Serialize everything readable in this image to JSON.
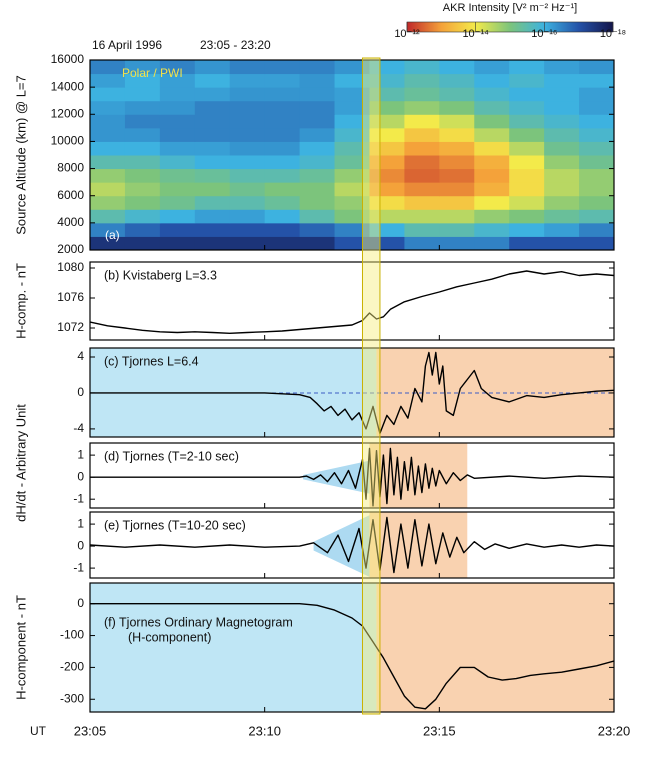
{
  "title": "16 April 1996",
  "subtitle": "23:05 - 23:20",
  "x_axis": {
    "label": "UT",
    "xlim": [
      5,
      20
    ],
    "xticks": [
      {
        "value": 5,
        "label": "23:05"
      },
      {
        "value": 10,
        "label": "23:10"
      },
      {
        "value": 15,
        "label": "23:15"
      },
      {
        "value": 20,
        "label": "23:20"
      }
    ]
  },
  "highlight": {
    "x": [
      12.8,
      13.3
    ],
    "color": "#f7ee7a"
  },
  "shared_ylabel": "dH/dt - Arbitrary Unit",
  "chart_data": [
    {
      "type": "heatmap",
      "ylabel": "Source Altitude (km) @ L=7",
      "annotations": [
        "(a)",
        "Polar / PWI"
      ],
      "ylim": [
        2000,
        16000
      ],
      "yticks": [
        2000,
        4000,
        6000,
        8000,
        10000,
        12000,
        14000,
        16000
      ],
      "colorbar_label": "AKR Intensity [V² m⁻² Hz⁻¹]",
      "colorbar_lim": [
        -12,
        -18
      ],
      "colorbar_ticks": [
        {
          "value": -12,
          "label": "10⁻¹²"
        },
        {
          "value": -14,
          "label": "10⁻¹⁴"
        },
        {
          "value": -16,
          "label": "10⁻¹⁶"
        },
        {
          "value": -18,
          "label": "10⁻¹⁸"
        }
      ],
      "colorscale": [
        [
          -12,
          "#c0282a"
        ],
        [
          -13,
          "#f4a23a"
        ],
        [
          -14,
          "#f3ea4a"
        ],
        [
          -15,
          "#7cc47c"
        ],
        [
          -16,
          "#3db2e0"
        ],
        [
          -17,
          "#2452a8"
        ],
        [
          -18,
          "#14154a"
        ]
      ],
      "xbins": [
        5,
        6,
        7,
        8,
        9,
        10,
        11,
        12,
        13,
        14,
        15,
        16,
        17,
        18,
        19,
        20
      ],
      "ybins": [
        2000,
        3000,
        4000,
        5000,
        6000,
        7000,
        8000,
        9000,
        10000,
        11000,
        12000,
        13000,
        14000,
        15000,
        16000
      ],
      "z": [
        [
          -17.5,
          -17.5,
          -17.5,
          -17.5,
          -17.5,
          -17.5,
          -17.5,
          -17,
          -17,
          -16.5,
          -16.5,
          -16.5,
          -17,
          -17,
          -17
        ],
        [
          -16.5,
          -16.8,
          -17,
          -17,
          -17,
          -17,
          -16.8,
          -16.5,
          -16,
          -15.5,
          -15.5,
          -15.8,
          -16,
          -16.2,
          -16.5
        ],
        [
          -15.5,
          -15.8,
          -16,
          -16.2,
          -16.2,
          -16,
          -15.5,
          -15,
          -14.5,
          -14.5,
          -14.5,
          -14.8,
          -15,
          -15.3,
          -15.5
        ],
        [
          -14.8,
          -15,
          -15.2,
          -15.5,
          -15.5,
          -15.3,
          -15,
          -14.8,
          -13.8,
          -13.5,
          -13.5,
          -14,
          -14.3,
          -14.8,
          -15
        ],
        [
          -14.5,
          -14.8,
          -15,
          -15,
          -15.2,
          -15,
          -15,
          -14.5,
          -13,
          -12.8,
          -12.8,
          -13.2,
          -13.8,
          -14.5,
          -14.8
        ],
        [
          -14.8,
          -15,
          -15.2,
          -15.3,
          -15.5,
          -15.5,
          -15.3,
          -14.8,
          -12.8,
          -12.5,
          -12.6,
          -13,
          -13.8,
          -14.5,
          -14.8
        ],
        [
          -15.5,
          -15.5,
          -15.8,
          -16,
          -16,
          -16,
          -15.8,
          -15.3,
          -13,
          -12.6,
          -12.8,
          -13.2,
          -14,
          -14.8,
          -15.2
        ],
        [
          -16,
          -16,
          -16.2,
          -16.2,
          -16.3,
          -16.3,
          -16,
          -15.5,
          -13.5,
          -13,
          -13.2,
          -13.8,
          -14.5,
          -15.2,
          -15.5
        ],
        [
          -16.3,
          -16.3,
          -16.5,
          -16.5,
          -16.5,
          -16.5,
          -16.3,
          -15.8,
          -14,
          -13.5,
          -13.8,
          -14.5,
          -15,
          -15.5,
          -15.8
        ],
        [
          -16.3,
          -16.5,
          -16.5,
          -16.5,
          -16.5,
          -16.5,
          -16.5,
          -16,
          -14.5,
          -14,
          -14.3,
          -15,
          -15.5,
          -15.8,
          -16
        ],
        [
          -16.2,
          -16.3,
          -16.3,
          -16.5,
          -16.5,
          -16.5,
          -16.5,
          -16.2,
          -15,
          -14.8,
          -15,
          -15.5,
          -15.8,
          -16,
          -16.2
        ],
        [
          -16,
          -16,
          -16.2,
          -16.2,
          -16.3,
          -16.3,
          -16.3,
          -16.2,
          -15.5,
          -15.3,
          -15.5,
          -15.8,
          -16,
          -16,
          -16.2
        ],
        [
          -16.2,
          -16,
          -16.2,
          -16,
          -16.2,
          -16.2,
          -16.3,
          -16,
          -15.8,
          -15.5,
          -15.7,
          -16,
          -15.8,
          -16,
          -16
        ],
        [
          -16.5,
          -16.3,
          -16.5,
          -16.3,
          -16.5,
          -16.5,
          -16.5,
          -16.3,
          -16,
          -15.8,
          -16,
          -16.2,
          -16,
          -16.2,
          -16.3
        ]
      ]
    },
    {
      "type": "line",
      "ylabel": "H-comp. - nT",
      "annotations": [
        "(b) Kvistaberg  L=3.3"
      ],
      "color": "#000000",
      "ylim": [
        1070.4,
        1080.8
      ],
      "yticks": [
        1072,
        1076,
        1080
      ],
      "x": [
        5,
        5.5,
        6,
        6.5,
        7,
        7.5,
        8,
        8.5,
        9,
        9.5,
        10,
        10.5,
        11,
        11.5,
        12,
        12.5,
        12.8,
        13,
        13.2,
        13.4,
        13.6,
        14,
        14.5,
        15,
        15.5,
        16,
        16.5,
        17,
        17.5,
        18,
        18.5,
        19,
        19.5,
        20
      ],
      "values": [
        1072.8,
        1072.3,
        1072,
        1071.7,
        1071.5,
        1071.4,
        1071.5,
        1071.4,
        1071.3,
        1071.4,
        1071.5,
        1071.6,
        1071.8,
        1072,
        1072.2,
        1072.4,
        1073,
        1074,
        1073.2,
        1073.5,
        1074.5,
        1075.5,
        1076.2,
        1076.8,
        1077.5,
        1078,
        1078.5,
        1079.2,
        1079.6,
        1079.2,
        1079.5,
        1079,
        1079.2,
        1079
      ]
    },
    {
      "type": "line",
      "annotations": [
        "(c) Tjornes  L=6.4"
      ],
      "color": "#000000",
      "zero_line": true,
      "bands": [
        {
          "x": [
            5,
            13.2
          ],
          "color": "#bfe6f5"
        },
        {
          "x": [
            13.2,
            20
          ],
          "color": "#f9d2b0"
        }
      ],
      "ylim": [
        -4.9,
        5
      ],
      "yticks": [
        4,
        0,
        -4
      ],
      "x": [
        5,
        6,
        7,
        8,
        9,
        10,
        10.5,
        11,
        11.3,
        11.5,
        11.7,
        11.9,
        12.1,
        12.3,
        12.5,
        12.7,
        12.9,
        13.1,
        13.3,
        13.5,
        13.7,
        13.9,
        14.1,
        14.3,
        14.5,
        14.6,
        14.7,
        14.8,
        14.9,
        15,
        15.1,
        15.2,
        15.4,
        15.6,
        15.8,
        16,
        16.2,
        16.5,
        17,
        17.5,
        18,
        18.5,
        19,
        19.5,
        20
      ],
      "values": [
        0,
        0,
        0,
        0,
        0,
        0,
        -0.1,
        -0.2,
        -0.5,
        -1.2,
        -2,
        -1.5,
        -2.5,
        -1.8,
        -3,
        -2.2,
        -4,
        -1.5,
        -4.5,
        -2.5,
        -3.5,
        -1.5,
        -2.8,
        0.5,
        -1,
        3,
        4.5,
        2,
        4.5,
        1,
        3,
        -2,
        -2.5,
        0.5,
        1.5,
        2.5,
        0.5,
        -0.5,
        -1,
        -0.3,
        -0.5,
        -0.2,
        0,
        0.2,
        0.3
      ]
    },
    {
      "type": "line",
      "annotations": [
        "(d) Tjornes  (T=2-10 sec)"
      ],
      "color": "#000000",
      "bands": [
        {
          "x": [
            13,
            15.8
          ],
          "color": "#f9d2b0"
        }
      ],
      "wedge": {
        "x": [
          11.1,
          13
        ],
        "half_height": [
          0.1,
          0.75
        ],
        "color": "#9fd3ee"
      },
      "ylim": [
        -1.4,
        1.55
      ],
      "yticks": [
        1,
        0,
        -1
      ],
      "x": [
        5,
        7,
        9,
        10,
        11,
        11.2,
        11.4,
        11.6,
        11.8,
        12,
        12.2,
        12.4,
        12.6,
        12.8,
        12.9,
        13,
        13.1,
        13.2,
        13.3,
        13.4,
        13.5,
        13.6,
        13.7,
        13.8,
        13.9,
        14,
        14.1,
        14.2,
        14.3,
        14.4,
        14.5,
        14.6,
        14.7,
        14.8,
        14.9,
        15,
        15.2,
        15.4,
        15.6,
        15.8,
        16,
        17,
        18,
        19,
        20
      ],
      "values": [
        0,
        0,
        0,
        0,
        0,
        0.05,
        -0.1,
        0.1,
        -0.2,
        0.2,
        -0.3,
        0.3,
        -0.5,
        0.8,
        -1,
        1.3,
        -1.3,
        1.2,
        -0.9,
        1,
        -1.2,
        1.3,
        -0.8,
        0.9,
        -1,
        0.7,
        -0.6,
        0.9,
        -0.8,
        0.5,
        -0.7,
        0.6,
        -0.5,
        0.4,
        -0.4,
        0.3,
        -0.3,
        0.2,
        -0.15,
        0.1,
        -0.05,
        0.05,
        -0.05,
        0.05,
        0
      ]
    },
    {
      "type": "line",
      "annotations": [
        "(e) Tjornes  (T=10-20 sec)"
      ],
      "color": "#000000",
      "bands": [
        {
          "x": [
            13,
            15.8
          ],
          "color": "#f9d2b0"
        }
      ],
      "wedge": {
        "x": [
          11.4,
          13
        ],
        "half_height": [
          0.2,
          1.4
        ],
        "color": "#9fd3ee"
      },
      "ylim": [
        -1.45,
        1.55
      ],
      "yticks": [
        1,
        0,
        -1
      ],
      "x": [
        5,
        6,
        7,
        8,
        9,
        10,
        11,
        11.4,
        11.8,
        12.1,
        12.4,
        12.7,
        12.9,
        13.1,
        13.3,
        13.5,
        13.7,
        13.9,
        14.1,
        14.3,
        14.5,
        14.7,
        14.9,
        15.1,
        15.3,
        15.5,
        15.7,
        16,
        16.3,
        16.6,
        17,
        17.5,
        18,
        18.5,
        19,
        19.5,
        20
      ],
      "values": [
        0.05,
        -0.05,
        0.05,
        -0.05,
        0.05,
        -0.05,
        0,
        0.15,
        -0.3,
        0.5,
        -0.7,
        0.8,
        -1,
        1.2,
        -1.1,
        1.3,
        -1.2,
        1,
        -1,
        1.2,
        -0.9,
        1,
        -0.8,
        0.6,
        -0.5,
        0.4,
        -0.3,
        0.2,
        -0.15,
        0.1,
        -0.1,
        0.1,
        -0.05,
        0.05,
        -0.05,
        0.05,
        0
      ]
    },
    {
      "type": "line",
      "ylabel": "H-component - nT",
      "annotations": [
        "(f) Tjornes  Ordinary Magnetogram",
        "(H-component)"
      ],
      "color": "#000000",
      "bands": [
        {
          "x": [
            5,
            13.2
          ],
          "color": "#bfe6f5"
        },
        {
          "x": [
            13.2,
            20
          ],
          "color": "#f9d2b0"
        }
      ],
      "ylim": [
        -340,
        65
      ],
      "yticks": [
        0,
        -100,
        -200,
        -300
      ],
      "x": [
        5,
        6,
        7,
        8,
        9,
        10,
        11,
        11.5,
        12,
        12.5,
        12.8,
        13.1,
        13.4,
        13.7,
        14,
        14.3,
        14.6,
        14.9,
        15.2,
        15.6,
        16,
        16.4,
        16.8,
        17.2,
        17.6,
        18,
        18.5,
        19,
        19.5,
        20
      ],
      "values": [
        0,
        0,
        0,
        0,
        0,
        0,
        0,
        -5,
        -20,
        -45,
        -70,
        -120,
        -170,
        -230,
        -290,
        -325,
        -330,
        -300,
        -250,
        -200,
        -200,
        -230,
        -240,
        -235,
        -225,
        -220,
        -215,
        -205,
        -195,
        -180
      ]
    }
  ]
}
